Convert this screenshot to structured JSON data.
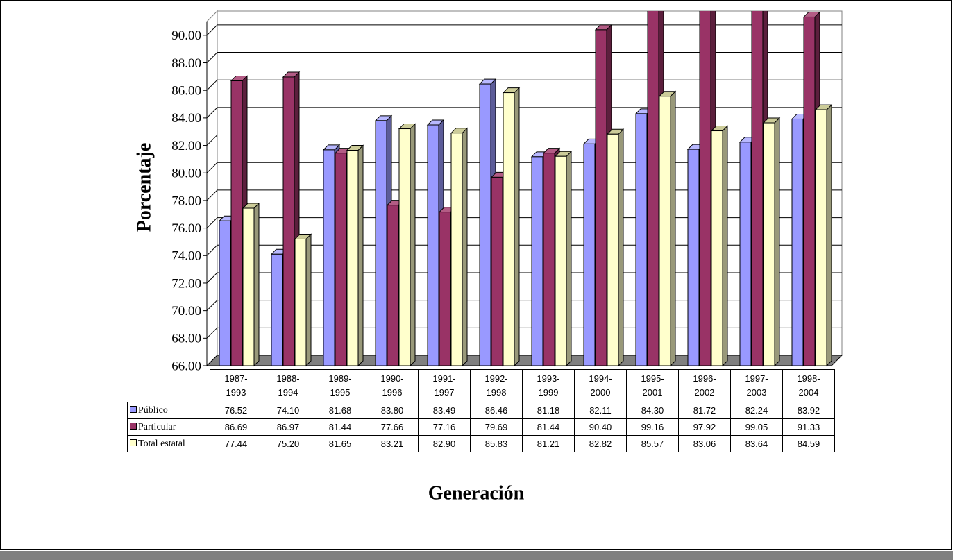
{
  "chart_data": {
    "type": "bar3d",
    "y_label": "Porcentaje",
    "x_label": "Generación",
    "categories": [
      "1987-\n1993",
      "1988-\n1994",
      "1989-\n1995",
      "1990-\n1996",
      "1991-\n1997",
      "1992-\n1998",
      "1993-\n1999",
      "1994-\n2000",
      "1995-\n2001",
      "1996-\n2002",
      "1997-\n2003",
      "1998-\n2004"
    ],
    "series": [
      {
        "name": "Público",
        "color": "#9999ff",
        "side": "#5c5c99",
        "top": "#b8b8ff",
        "values": [
          76.52,
          74.1,
          81.68,
          83.8,
          83.49,
          86.46,
          81.18,
          82.11,
          84.3,
          81.72,
          82.24,
          83.92
        ],
        "value_labels": [
          "76.52",
          "74.10",
          "81.68",
          "83.80",
          "83.49",
          "86.46",
          "81.18",
          "82.11",
          "84.30",
          "81.72",
          "82.24",
          "83.92"
        ]
      },
      {
        "name": "Particular",
        "color": "#993366",
        "side": "#5c1f3d",
        "top": "#b35c85",
        "values": [
          86.69,
          86.97,
          81.44,
          77.66,
          77.16,
          79.69,
          81.44,
          90.4,
          99.16,
          97.92,
          99.05,
          91.33
        ],
        "value_labels": [
          "86.69",
          "86.97",
          "81.44",
          "77.66",
          "77.16",
          "79.69",
          "81.44",
          "90.40",
          "99.16",
          "97.92",
          "99.05",
          "91.33"
        ]
      },
      {
        "name": "Total estatal",
        "color": "#ffffcc",
        "side": "#99997a",
        "top": "#cccc99",
        "values": [
          77.44,
          75.2,
          81.65,
          83.21,
          82.9,
          85.83,
          81.21,
          82.82,
          85.57,
          83.06,
          83.64,
          84.59
        ],
        "value_labels": [
          "77.44",
          "75.20",
          "81.65",
          "83.21",
          "82.90",
          "85.83",
          "81.21",
          "82.82",
          "85.57",
          "83.06",
          "83.64",
          "84.59"
        ]
      }
    ],
    "ylim": [
      66,
      91
    ],
    "yticks": [
      {
        "value": 66,
        "label": "66.00"
      },
      {
        "value": 68,
        "label": "68.00"
      },
      {
        "value": 70,
        "label": "70.00"
      },
      {
        "value": 72,
        "label": "72.00"
      },
      {
        "value": 74,
        "label": "74.00"
      },
      {
        "value": 76,
        "label": "76.00"
      },
      {
        "value": 78,
        "label": "78.00"
      },
      {
        "value": 80,
        "label": "80.00"
      },
      {
        "value": 82,
        "label": "82.00"
      },
      {
        "value": 84,
        "label": "84.00"
      },
      {
        "value": 86,
        "label": "86.00"
      },
      {
        "value": 88,
        "label": "88.00"
      },
      {
        "value": 90,
        "label": "90.00"
      }
    ],
    "grid": true
  }
}
